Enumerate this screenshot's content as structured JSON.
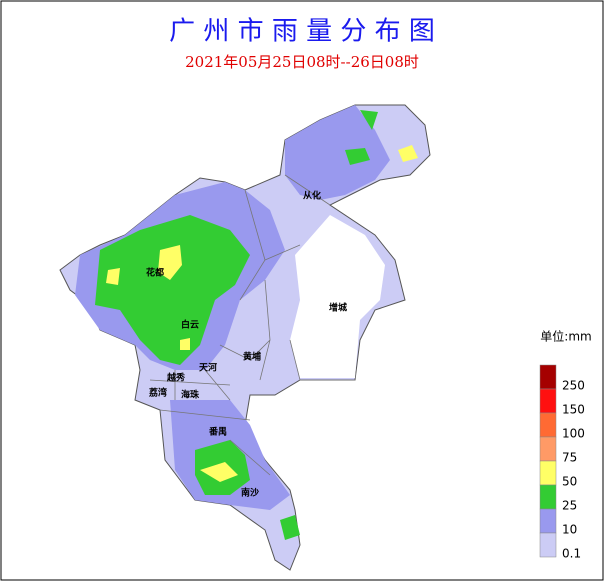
{
  "title": "广 州 市 雨 量 分 布 图",
  "subtitle": "2021年05月25日08时--26日08时",
  "districts": [
    {
      "name": "从化"
    },
    {
      "name": "花都"
    },
    {
      "name": "增城"
    },
    {
      "name": "白云"
    },
    {
      "name": "黄埔"
    },
    {
      "name": "天河"
    },
    {
      "name": "越秀"
    },
    {
      "name": "荔湾"
    },
    {
      "name": "海珠"
    },
    {
      "name": "番禺"
    },
    {
      "name": "南沙"
    }
  ],
  "legend": {
    "unit": "单位:mm",
    "items": [
      {
        "value": 250,
        "color": "#a50000"
      },
      {
        "value": 150,
        "color": "#ff1010"
      },
      {
        "value": 100,
        "color": "#ff6a33"
      },
      {
        "value": 75,
        "color": "#ff9a66"
      },
      {
        "value": 50,
        "color": "#ffff66"
      },
      {
        "value": 25,
        "color": "#33cc33"
      },
      {
        "value": 10,
        "color": "#9999ee"
      },
      {
        "value": 0.1,
        "color": "#ccccf5"
      }
    ]
  }
}
